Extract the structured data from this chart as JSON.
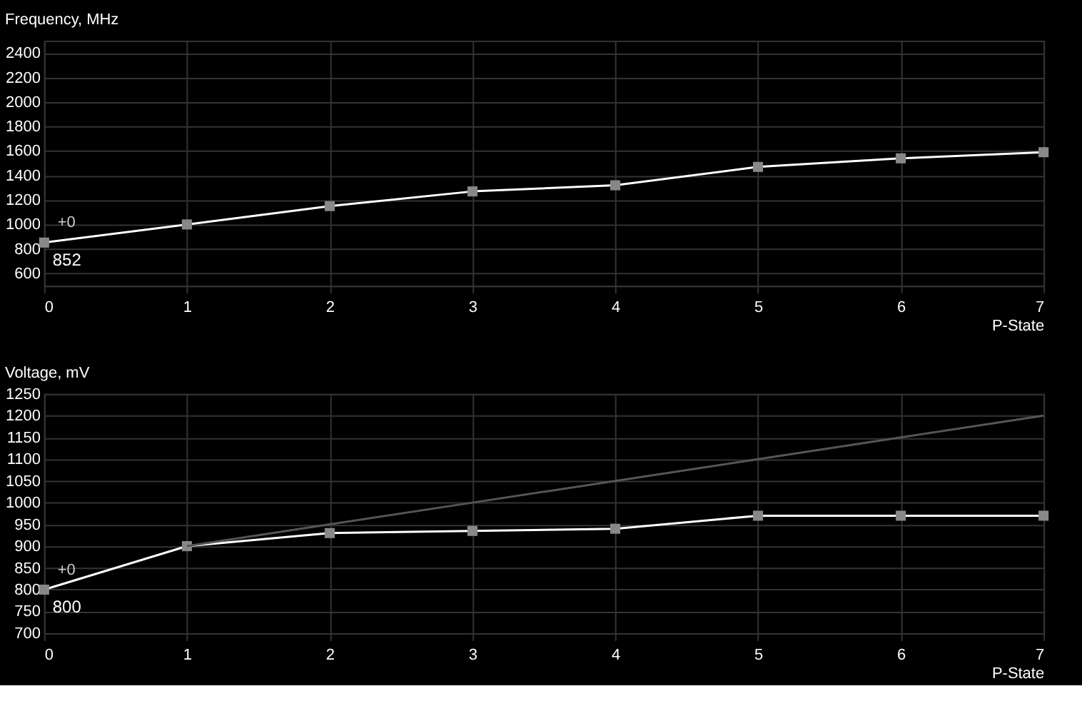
{
  "chart_data": [
    {
      "type": "line",
      "ylabel": "Frequency, MHz",
      "xlabel": "P-State",
      "x": [
        0,
        1,
        2,
        3,
        4,
        5,
        6,
        7
      ],
      "series": [
        {
          "color": "#ffffff",
          "values": [
            852,
            1000,
            1150,
            1270,
            1320,
            1470,
            1540,
            1590
          ],
          "value_labels": [
            "852",
            null,
            null,
            null,
            null,
            null,
            null,
            null
          ]
        }
      ],
      "annotations": [
        "+0"
      ],
      "xlim": [
        0,
        7
      ],
      "xticks": [
        0,
        1,
        2,
        3,
        4,
        5,
        6,
        7
      ],
      "ylim": [
        500,
        2500
      ],
      "yticks": [
        600,
        800,
        1000,
        1200,
        1400,
        1600,
        1800,
        2000,
        2200,
        2400
      ],
      "grid": true,
      "marker": "square",
      "line_style": "solid"
    },
    {
      "type": "line",
      "ylabel": "Voltage, mV",
      "xlabel": "P-State",
      "x": [
        0,
        1,
        2,
        3,
        4,
        5,
        6,
        7
      ],
      "series": [
        {
          "color": "#ffffff",
          "values": [
            800,
            900,
            930,
            935,
            940,
            970,
            970,
            970
          ],
          "value_labels": [
            "800",
            null,
            null,
            null,
            null,
            null,
            null,
            null
          ]
        },
        {
          "color": "#555555",
          "x": [
            1,
            2,
            3,
            4,
            5,
            6,
            7
          ],
          "values": [
            900,
            950,
            1000,
            1050,
            1100,
            1150,
            1200
          ],
          "marker": "none"
        }
      ],
      "annotations": [
        "+0"
      ],
      "xlim": [
        0,
        7
      ],
      "xticks": [
        0,
        1,
        2,
        3,
        4,
        5,
        6,
        7
      ],
      "ylim": [
        700,
        1250
      ],
      "yticks": [
        700,
        750,
        800,
        850,
        900,
        950,
        1000,
        1050,
        1100,
        1150,
        1200,
        1250
      ],
      "grid": true,
      "marker": "square",
      "line_style": "solid"
    }
  ]
}
